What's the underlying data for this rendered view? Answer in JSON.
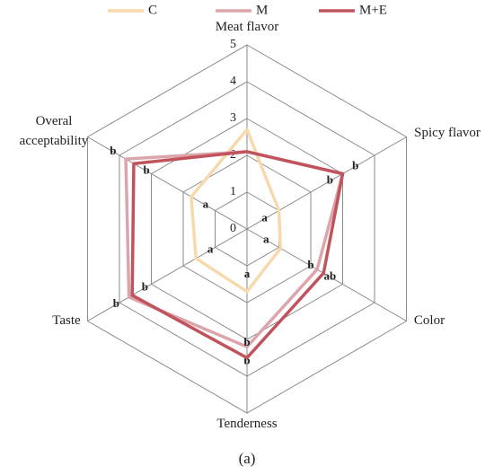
{
  "chart_data": {
    "type": "radar",
    "caption": "(a)",
    "categories": [
      "Meat flavor",
      "Spicy flavor",
      "Color",
      "Tenderness",
      "Taste",
      "Overal acceptability"
    ],
    "ylim": [
      0,
      5
    ],
    "yticks": [
      0,
      1,
      2,
      3,
      4,
      5
    ],
    "grid": true,
    "legend": "top",
    "series": [
      {
        "name": "C",
        "color": "#f7d9ad",
        "values": [
          2.7,
          1.0,
          1.05,
          1.7,
          1.6,
          1.75
        ],
        "labels": [
          null,
          "a",
          "a",
          "a",
          "a",
          "a"
        ]
      },
      {
        "name": "M",
        "color": "#dca5ab",
        "values": [
          2.1,
          3.0,
          2.2,
          3.2,
          3.7,
          3.8
        ],
        "labels": [
          null,
          "b",
          "ab",
          "b",
          "b",
          "b"
        ]
      },
      {
        "name": "M+E",
        "color": "#c1535c",
        "values": [
          2.1,
          3.0,
          2.4,
          3.5,
          3.6,
          3.55
        ],
        "labels": [
          null,
          "b",
          "b",
          "b",
          "b",
          "b"
        ]
      }
    ]
  }
}
